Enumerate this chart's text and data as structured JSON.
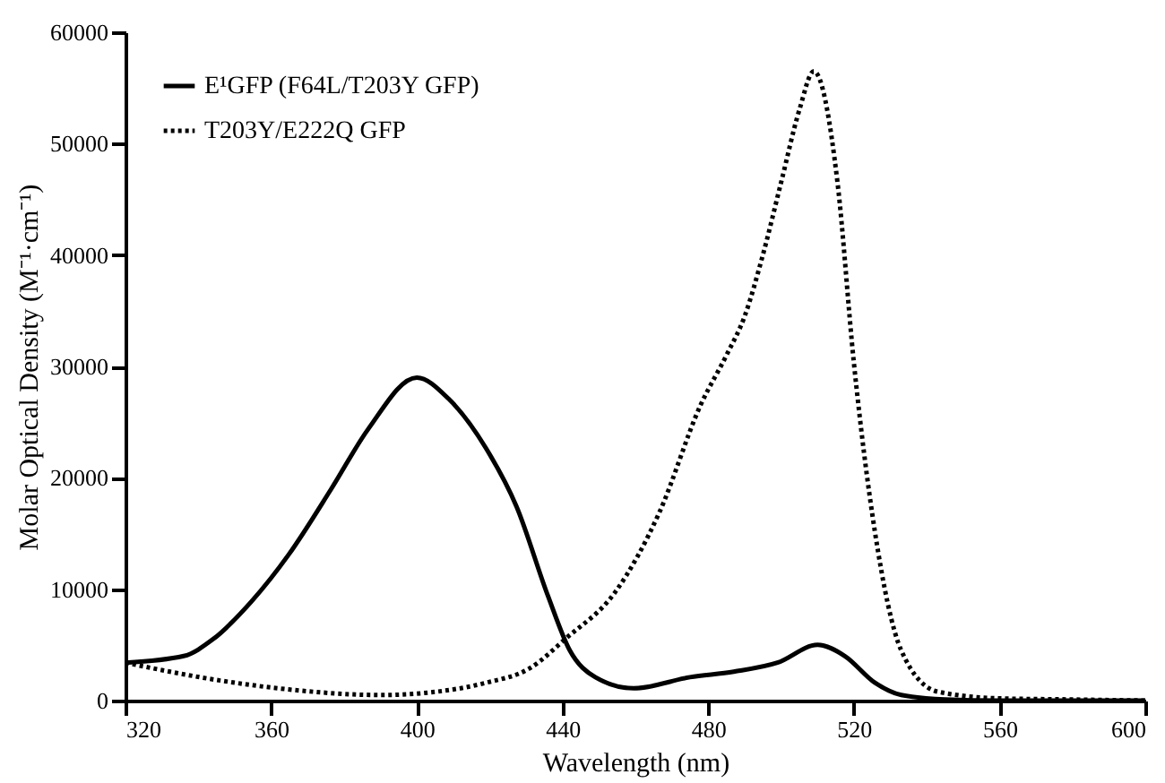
{
  "chart_data": {
    "type": "line",
    "xlabel": "Wavelength (nm)",
    "ylabel": "Molar Optical Density (M⁻¹·cm⁻¹)",
    "xlim": [
      320,
      600
    ],
    "xticks": [
      320,
      360,
      400,
      440,
      480,
      520,
      560,
      600
    ],
    "ylim": [
      0,
      60000
    ],
    "yticks": [
      0,
      10000,
      20000,
      30000,
      40000,
      50000,
      60000
    ],
    "legend": "top left",
    "series": [
      {
        "name": "E¹GFP (F64L/T203Y GFP)",
        "color": "#000000",
        "line_style": "solid",
        "x": [
          320,
          336,
          344,
          354.6,
          364.8,
          376.5,
          386.7,
          400,
          408.7,
          418.9,
          427.4,
          436,
          442,
          449,
          459.5,
          475,
          487,
          499,
          510,
          517.5,
          525.8,
          533,
          545,
          560,
          600
        ],
        "values": [
          3400,
          4000,
          5500,
          8900,
          13100,
          19000,
          24400,
          29000,
          27100,
          22700,
          17400,
          9400,
          4500,
          2100,
          1100,
          2100,
          2600,
          3400,
          5000,
          4000,
          1600,
          500,
          100,
          0,
          0
        ]
      },
      {
        "name": "T203Y/E222Q GFP",
        "color": "#000000",
        "line_style": "dotted",
        "x": [
          320,
          346,
          364.8,
          390,
          405.5,
          419,
          431,
          441,
          454.6,
          466.6,
          478,
          485,
          490,
          495,
          500,
          505,
          509,
          515.5,
          520,
          525.7,
          533,
          543,
          560,
          580,
          600
        ],
        "values": [
          3400,
          1800,
          1000,
          500,
          800,
          1600,
          2900,
          5600,
          9800,
          16900,
          26600,
          31000,
          34500,
          40000,
          46500,
          53000,
          56500,
          46500,
          30300,
          15300,
          4500,
          800,
          200,
          100,
          0
        ]
      }
    ]
  }
}
